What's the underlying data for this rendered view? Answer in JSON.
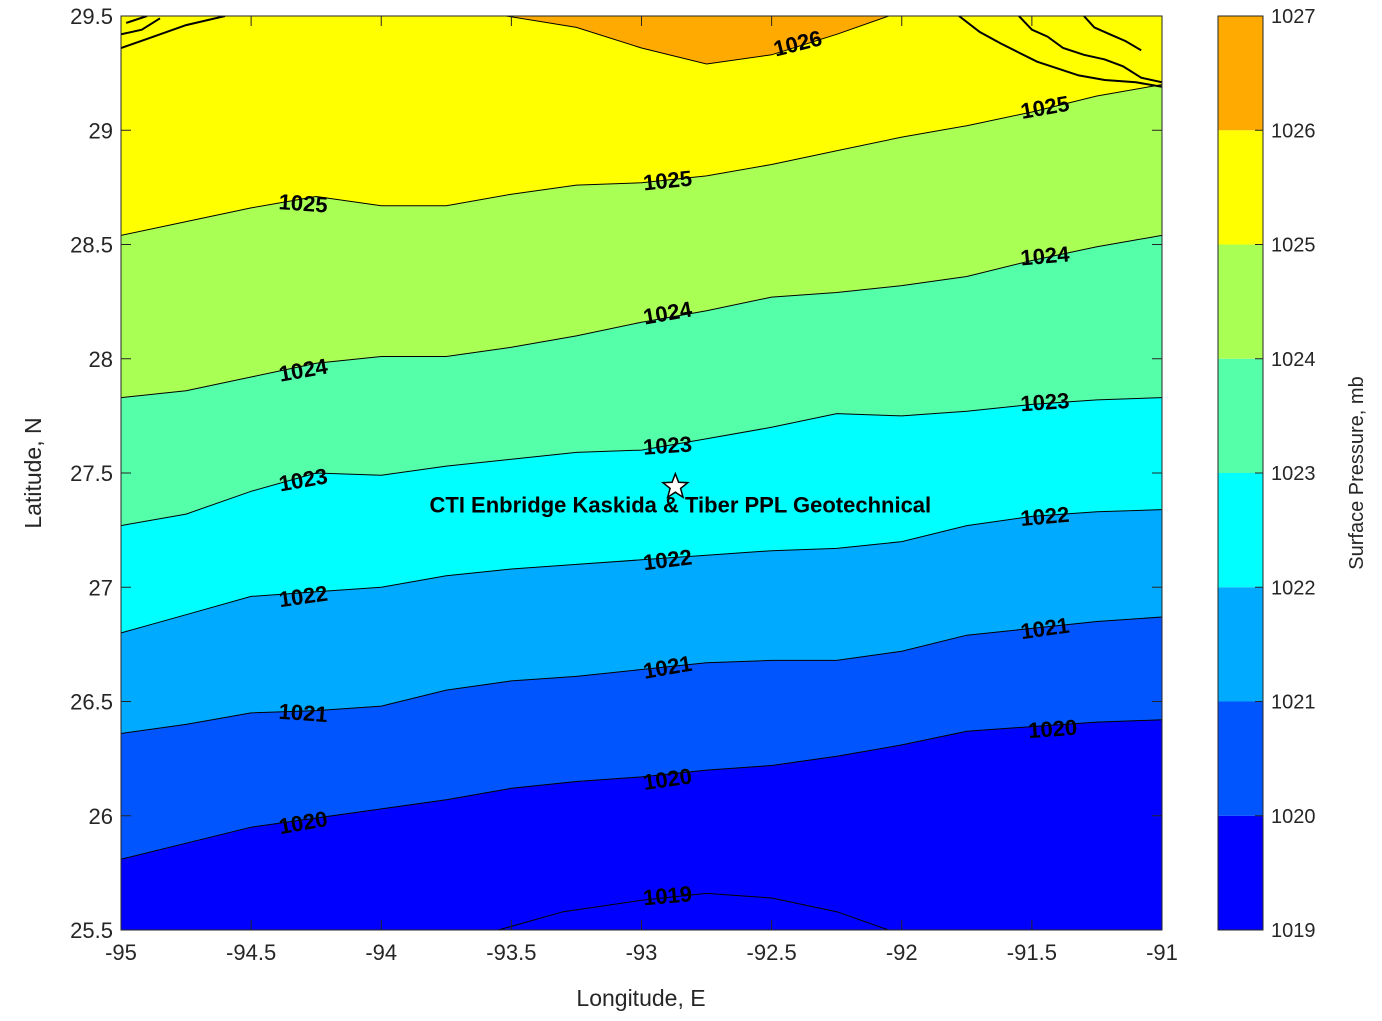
{
  "chart_data": {
    "type": "contour",
    "title": "",
    "xlabel": "Longitude, E",
    "ylabel": "Latitude, N",
    "xlim": [
      -95,
      -91
    ],
    "ylim": [
      25.5,
      29.5
    ],
    "x_ticks": [
      "-95",
      "-94.5",
      "-94",
      "-93.5",
      "-93",
      "-92.5",
      "-92",
      "-91.5",
      "-91"
    ],
    "y_ticks": [
      "25.5",
      "26",
      "26.5",
      "27",
      "27.5",
      "28",
      "28.5",
      "29",
      "29.5"
    ],
    "grid": false,
    "colorbar": {
      "label": "Surface Pressure, mb",
      "levels": [
        1019,
        1020,
        1021,
        1022,
        1023,
        1024,
        1025,
        1026,
        1027
      ],
      "tick_labels": [
        "1019",
        "1020",
        "1021",
        "1022",
        "1023",
        "1024",
        "1025",
        "1026",
        "1027"
      ],
      "colors": [
        "#0000ff",
        "#0055ff",
        "#00aaff",
        "#00ffff",
        "#55ffaa",
        "#aaff55",
        "#ffff00",
        "#ffaa00",
        "#ff5500"
      ],
      "placement": "right"
    },
    "background_color": "#0000ff",
    "contours": [
      {
        "level": 1019,
        "points": [
          [
            -93.55,
            25.5
          ],
          [
            -93.3,
            25.58
          ],
          [
            -93.0,
            25.63
          ],
          [
            -92.75,
            25.66
          ],
          [
            -92.5,
            25.64
          ],
          [
            -92.25,
            25.58
          ],
          [
            -92.05,
            25.5
          ]
        ],
        "labels": [
          {
            "text": "1019",
            "lon": -92.9,
            "lat": 25.65,
            "angle": -5
          }
        ]
      },
      {
        "level": 1020,
        "points": [
          [
            -95.0,
            25.81
          ],
          [
            -94.75,
            25.88
          ],
          [
            -94.5,
            25.95
          ],
          [
            -94.25,
            25.99
          ],
          [
            -94.0,
            26.03
          ],
          [
            -93.75,
            26.07
          ],
          [
            -93.5,
            26.12
          ],
          [
            -93.25,
            26.15
          ],
          [
            -93.0,
            26.17
          ],
          [
            -92.75,
            26.2
          ],
          [
            -92.5,
            26.22
          ],
          [
            -92.25,
            26.26
          ],
          [
            -92.0,
            26.31
          ],
          [
            -91.75,
            26.37
          ],
          [
            -91.5,
            26.39
          ],
          [
            -91.25,
            26.41
          ],
          [
            -91.0,
            26.42
          ]
        ],
        "labels": [
          {
            "text": "1020",
            "lon": -94.3,
            "lat": 25.97,
            "angle": -10
          },
          {
            "text": "1020",
            "lon": -92.9,
            "lat": 26.16,
            "angle": -8
          },
          {
            "text": "1020",
            "lon": -91.42,
            "lat": 26.38,
            "angle": -4
          }
        ]
      },
      {
        "level": 1021,
        "points": [
          [
            -95.0,
            26.36
          ],
          [
            -94.75,
            26.4
          ],
          [
            -94.5,
            26.45
          ],
          [
            -94.25,
            26.46
          ],
          [
            -94.0,
            26.48
          ],
          [
            -93.75,
            26.55
          ],
          [
            -93.5,
            26.59
          ],
          [
            -93.25,
            26.61
          ],
          [
            -93.0,
            26.64
          ],
          [
            -92.75,
            26.67
          ],
          [
            -92.5,
            26.68
          ],
          [
            -92.25,
            26.68
          ],
          [
            -92.0,
            26.72
          ],
          [
            -91.75,
            26.79
          ],
          [
            -91.5,
            26.82
          ],
          [
            -91.25,
            26.85
          ],
          [
            -91.0,
            26.87
          ]
        ],
        "labels": [
          {
            "text": "1021",
            "lon": -94.3,
            "lat": 26.45,
            "angle": 4
          },
          {
            "text": "1021",
            "lon": -92.9,
            "lat": 26.65,
            "angle": -10
          },
          {
            "text": "1021",
            "lon": -91.45,
            "lat": 26.82,
            "angle": -8
          }
        ]
      },
      {
        "level": 1022,
        "points": [
          [
            -95.0,
            26.8
          ],
          [
            -94.75,
            26.88
          ],
          [
            -94.5,
            26.96
          ],
          [
            -94.25,
            26.98
          ],
          [
            -94.0,
            27.0
          ],
          [
            -93.75,
            27.05
          ],
          [
            -93.5,
            27.08
          ],
          [
            -93.25,
            27.1
          ],
          [
            -93.0,
            27.12
          ],
          [
            -92.75,
            27.14
          ],
          [
            -92.5,
            27.16
          ],
          [
            -92.25,
            27.17
          ],
          [
            -92.0,
            27.2
          ],
          [
            -91.75,
            27.27
          ],
          [
            -91.5,
            27.31
          ],
          [
            -91.25,
            27.33
          ],
          [
            -91.0,
            27.34
          ]
        ],
        "labels": [
          {
            "text": "1022",
            "lon": -94.3,
            "lat": 26.96,
            "angle": -8
          },
          {
            "text": "1022",
            "lon": -92.9,
            "lat": 27.12,
            "angle": -7
          },
          {
            "text": "1022",
            "lon": -91.45,
            "lat": 27.31,
            "angle": -5
          }
        ]
      },
      {
        "level": 1023,
        "points": [
          [
            -95.0,
            27.27
          ],
          [
            -94.75,
            27.32
          ],
          [
            -94.5,
            27.42
          ],
          [
            -94.25,
            27.5
          ],
          [
            -94.0,
            27.49
          ],
          [
            -93.75,
            27.53
          ],
          [
            -93.5,
            27.56
          ],
          [
            -93.25,
            27.59
          ],
          [
            -93.0,
            27.6
          ],
          [
            -92.75,
            27.65
          ],
          [
            -92.5,
            27.7
          ],
          [
            -92.25,
            27.76
          ],
          [
            -92.0,
            27.75
          ],
          [
            -91.75,
            27.77
          ],
          [
            -91.5,
            27.8
          ],
          [
            -91.25,
            27.82
          ],
          [
            -91.0,
            27.83
          ]
        ],
        "labels": [
          {
            "text": "1023",
            "lon": -94.3,
            "lat": 27.47,
            "angle": -10
          },
          {
            "text": "1023",
            "lon": -92.9,
            "lat": 27.62,
            "angle": -4
          },
          {
            "text": "1023",
            "lon": -91.45,
            "lat": 27.81,
            "angle": -4
          }
        ]
      },
      {
        "level": 1024,
        "points": [
          [
            -95.0,
            27.83
          ],
          [
            -94.75,
            27.86
          ],
          [
            -94.5,
            27.92
          ],
          [
            -94.25,
            27.98
          ],
          [
            -94.0,
            28.01
          ],
          [
            -93.75,
            28.01
          ],
          [
            -93.5,
            28.05
          ],
          [
            -93.25,
            28.1
          ],
          [
            -93.0,
            28.16
          ],
          [
            -92.75,
            28.21
          ],
          [
            -92.5,
            28.27
          ],
          [
            -92.25,
            28.29
          ],
          [
            -92.0,
            28.32
          ],
          [
            -91.75,
            28.36
          ],
          [
            -91.5,
            28.43
          ],
          [
            -91.25,
            28.49
          ],
          [
            -91.0,
            28.54
          ]
        ],
        "labels": [
          {
            "text": "1024",
            "lon": -94.3,
            "lat": 27.95,
            "angle": -10
          },
          {
            "text": "1024",
            "lon": -92.9,
            "lat": 28.2,
            "angle": -10
          },
          {
            "text": "1024",
            "lon": -91.45,
            "lat": 28.45,
            "angle": -5
          }
        ]
      },
      {
        "level": 1025,
        "points": [
          [
            -95.0,
            28.54
          ],
          [
            -94.75,
            28.6
          ],
          [
            -94.5,
            28.66
          ],
          [
            -94.25,
            28.71
          ],
          [
            -94.0,
            28.67
          ],
          [
            -93.75,
            28.67
          ],
          [
            -93.5,
            28.72
          ],
          [
            -93.25,
            28.76
          ],
          [
            -93.0,
            28.77
          ],
          [
            -92.75,
            28.8
          ],
          [
            -92.5,
            28.85
          ],
          [
            -92.25,
            28.91
          ],
          [
            -92.0,
            28.97
          ],
          [
            -91.75,
            29.02
          ],
          [
            -91.5,
            29.08
          ],
          [
            -91.25,
            29.15
          ],
          [
            -91.0,
            29.2
          ]
        ],
        "labels": [
          {
            "text": "1025",
            "lon": -94.3,
            "lat": 28.68,
            "angle": 4
          },
          {
            "text": "1025",
            "lon": -92.9,
            "lat": 28.78,
            "angle": -6
          },
          {
            "text": "1025",
            "lon": -91.45,
            "lat": 29.1,
            "angle": -10
          }
        ]
      },
      {
        "level": 1026,
        "points": [
          [
            -93.52,
            29.5
          ],
          [
            -93.25,
            29.45
          ],
          [
            -93.0,
            29.36
          ],
          [
            -92.75,
            29.29
          ],
          [
            -92.5,
            29.33
          ],
          [
            -92.25,
            29.42
          ],
          [
            -92.05,
            29.5
          ]
        ],
        "labels": [
          {
            "text": "1026",
            "lon": -92.4,
            "lat": 29.38,
            "angle": -14
          }
        ]
      }
    ],
    "coastlines": [
      [
        [
          -95.0,
          29.36
        ],
        [
          -94.9,
          29.4
        ],
        [
          -94.75,
          29.46
        ],
        [
          -94.6,
          29.5
        ]
      ],
      [
        [
          -95.0,
          29.42
        ],
        [
          -94.92,
          29.44
        ],
        [
          -94.85,
          29.49
        ]
      ],
      [
        [
          -94.98,
          29.47
        ],
        [
          -94.9,
          29.5
        ]
      ],
      [
        [
          -91.78,
          29.5
        ],
        [
          -91.7,
          29.43
        ],
        [
          -91.62,
          29.38
        ],
        [
          -91.55,
          29.34
        ],
        [
          -91.48,
          29.3
        ],
        [
          -91.4,
          29.27
        ],
        [
          -91.32,
          29.24
        ],
        [
          -91.22,
          29.22
        ],
        [
          -91.1,
          29.21
        ],
        [
          -91.0,
          29.19
        ]
      ],
      [
        [
          -91.55,
          29.5
        ],
        [
          -91.5,
          29.44
        ],
        [
          -91.44,
          29.41
        ],
        [
          -91.38,
          29.36
        ],
        [
          -91.3,
          29.33
        ],
        [
          -91.22,
          29.31
        ],
        [
          -91.15,
          29.28
        ],
        [
          -91.08,
          29.23
        ],
        [
          -91.0,
          29.21
        ]
      ],
      [
        [
          -91.3,
          29.5
        ],
        [
          -91.26,
          29.45
        ],
        [
          -91.2,
          29.42
        ],
        [
          -91.14,
          29.39
        ],
        [
          -91.08,
          29.35
        ]
      ]
    ],
    "site": {
      "label": "CTI Enbridge  Kaskida & Tiber PPL Geotechnical",
      "lon": -92.87,
      "lat": 27.44,
      "marker": "star"
    }
  }
}
